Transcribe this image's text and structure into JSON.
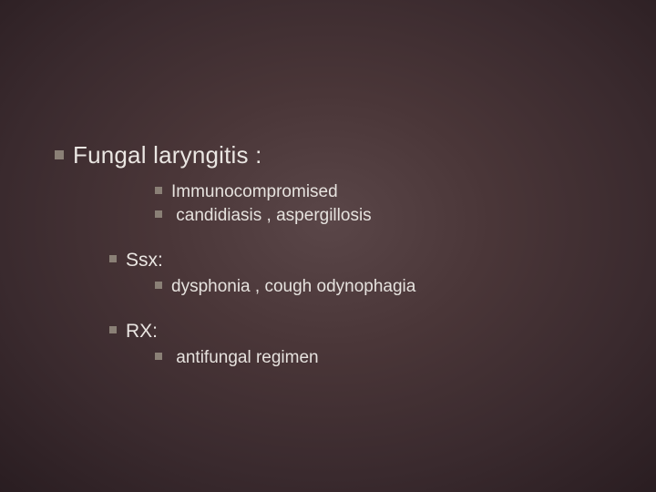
{
  "slide": {
    "background": {
      "type": "radial-gradient",
      "center_color": "#5a4648",
      "mid_color": "#3a2a2e",
      "edge_color": "#0a0608"
    },
    "bullet_color": "#8a8076",
    "text_color": "#e8e4e0",
    "font_family": "Verdana",
    "lvl1_fontsize": 26,
    "lvl2_fontsize": 19,
    "lvl3_fontsize": 19,
    "items": {
      "title": "Fungal laryngitis :",
      "sub1": "Immunocompromised",
      "sub2": " candidiasis , aspergillosis",
      "ssx_label": "Ssx:",
      "ssx_item": "dysphonia , cough odynophagia",
      "rx_label": "RX:",
      "rx_item": " antifungal regimen"
    }
  }
}
